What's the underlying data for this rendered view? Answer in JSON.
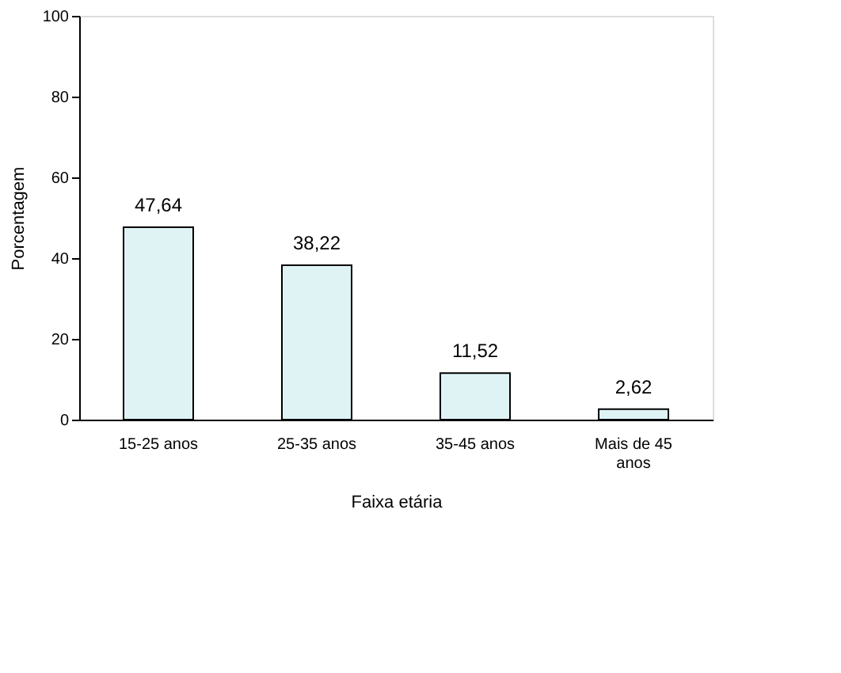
{
  "chart_data": {
    "type": "bar",
    "xlabel": "Faixa etária",
    "ylabel": "Porcentagem",
    "categories": [
      "15-25 anos",
      "25-35 anos",
      "35-45 anos",
      "Mais de 45\nanos"
    ],
    "values": [
      47.64,
      38.22,
      11.52,
      2.62
    ],
    "value_labels": [
      "47,64",
      "38,22",
      "11,52",
      "2,62"
    ],
    "color": "#dff3f5",
    "ylim": [
      0,
      100
    ],
    "yticks": [
      0,
      20,
      40,
      60,
      80,
      100
    ],
    "grid": false
  }
}
